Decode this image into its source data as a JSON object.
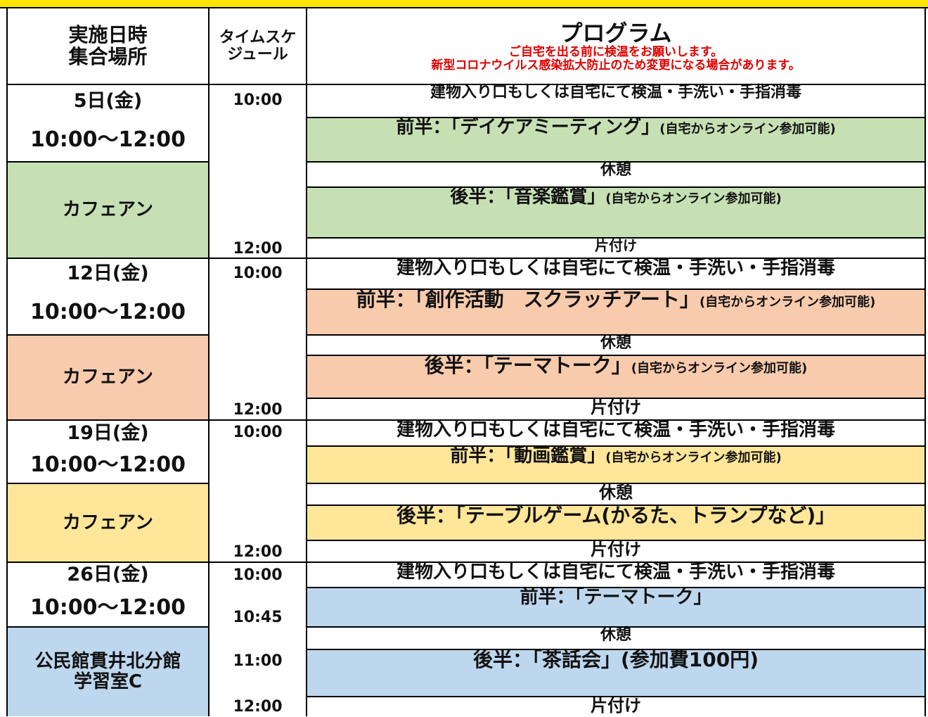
{
  "header": {
    "date_place": [
      "実施日時",
      "集合場所"
    ],
    "schedule": [
      "タイムスケ",
      "ジュール"
    ],
    "program": "プログラム",
    "notes": [
      "ご自宅を出る前に検温をお願いします。",
      "新型コロナウイルス感染拡大防止のため変更になる場合があります。"
    ]
  },
  "sections": [
    {
      "date": "5日(金)",
      "hours": "10:00〜12:00",
      "place": [
        "カフェアン"
      ],
      "color": "#c6e0b4",
      "times": [
        "10:00",
        "12:00"
      ],
      "rows": [
        {
          "main": "建物入り口もしくは自宅にて検温・手洗い・手指消毒"
        },
        {
          "main": "前半：「デイケアミーティング」",
          "note": "(自宅からオンライン参加可能)"
        },
        {
          "main": "休憩"
        },
        {
          "main": "後半：「音楽鑑賞」",
          "note": "(自宅からオンライン参加可能)"
        },
        {
          "main": "片付け"
        }
      ]
    },
    {
      "date": "12日(金)",
      "hours": "10:00〜12:00",
      "place": [
        "カフェアン"
      ],
      "color": "#f8cbad",
      "times": [
        "10:00",
        "12:00"
      ],
      "rows": [
        {
          "main": "建物入り口もしくは自宅にて検温・手洗い・手指消毒"
        },
        {
          "main": "前半：「創作活動　スクラッチアート」",
          "note": "(自宅からオンライン参加可能)"
        },
        {
          "main": "休憩"
        },
        {
          "main": "後半：「テーマトーク」",
          "note": "(自宅からオンライン参加可能)"
        },
        {
          "main": "片付け"
        }
      ]
    },
    {
      "date": "19日(金)",
      "hours": "10:00〜12:00",
      "place": [
        "カフェアン"
      ],
      "color": "#ffe699",
      "times": [
        "10:00",
        "12:00"
      ],
      "rows": [
        {
          "main": "建物入り口もしくは自宅にて検温・手洗い・手指消毒"
        },
        {
          "main": "前半：「動画鑑賞」",
          "note": "(自宅からオンライン参加可能)"
        },
        {
          "main": "休憩"
        },
        {
          "main": "後半：「テーブルゲーム(かるた、トランプなど)」"
        },
        {
          "main": "片付け"
        }
      ]
    },
    {
      "date": "26日(金)",
      "hours": "10:00〜12:00",
      "place": [
        "公民館貫井北分館",
        "学習室C"
      ],
      "color": "#bdd7ee",
      "times": [
        "10:00",
        "10:45",
        "11:00",
        "12:00"
      ],
      "rows": [
        {
          "main": "建物入り口もしくは自宅にて検温・手洗い・手指消毒"
        },
        {
          "main": "前半：「テーマトーク」"
        },
        {
          "main": "休憩"
        },
        {
          "main": "後半：「茶話会」(参加費100円)"
        },
        {
          "main": "片付け"
        }
      ]
    }
  ]
}
